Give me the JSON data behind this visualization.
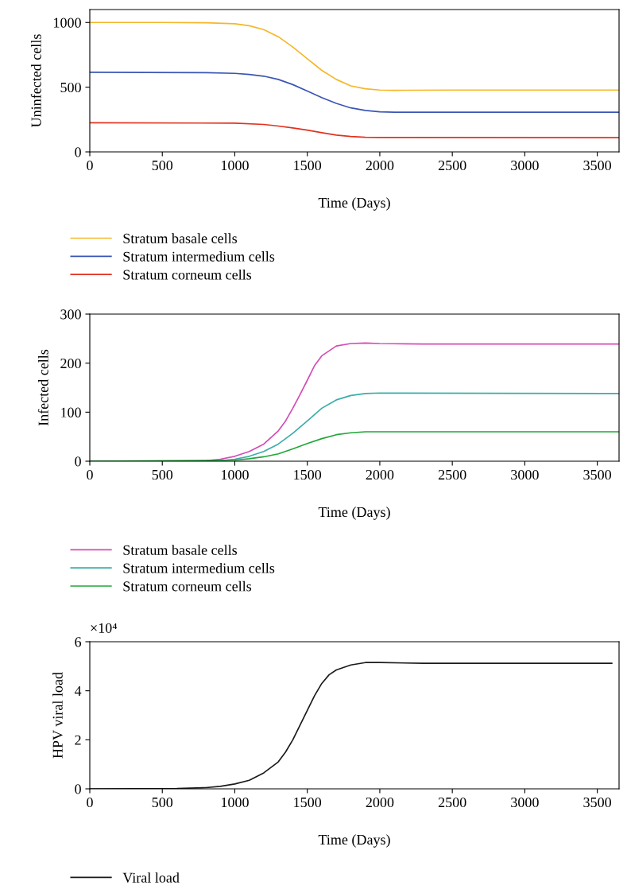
{
  "chart_data": [
    {
      "type": "line",
      "ylabel": "Uninfected cells",
      "xlabel": "Time (Days)",
      "xlim": [
        0,
        3650
      ],
      "xticks": [
        0,
        500,
        1000,
        1500,
        2000,
        2500,
        3000,
        3500
      ],
      "ylim": [
        0,
        1100
      ],
      "yticks": [
        0,
        500,
        1000
      ],
      "legend": "bottom",
      "grid": false,
      "series": [
        {
          "name": "Stratum basale cells",
          "color": "#f5b728",
          "x": [
            0,
            500,
            800,
            1000,
            1100,
            1200,
            1300,
            1400,
            1500,
            1600,
            1700,
            1800,
            1900,
            2000,
            2100,
            2500,
            3650
          ],
          "values": [
            1000,
            1000,
            998,
            990,
            975,
            945,
            890,
            810,
            720,
            630,
            560,
            510,
            488,
            478,
            476,
            478,
            478
          ]
        },
        {
          "name": "Stratum intermedium cells",
          "color": "#3a55b4",
          "x": [
            0,
            800,
            1000,
            1100,
            1200,
            1300,
            1400,
            1500,
            1600,
            1700,
            1800,
            1900,
            2000,
            2100,
            3650
          ],
          "values": [
            615,
            612,
            607,
            598,
            585,
            560,
            520,
            470,
            420,
            375,
            340,
            320,
            310,
            307,
            307
          ]
        },
        {
          "name": "Stratum corneum cells",
          "color": "#e2321e",
          "x": [
            0,
            1000,
            1200,
            1300,
            1400,
            1500,
            1600,
            1700,
            1800,
            1900,
            2000,
            3650
          ],
          "values": [
            225,
            222,
            212,
            200,
            185,
            168,
            148,
            130,
            119,
            113,
            111,
            110
          ]
        }
      ]
    },
    {
      "type": "line",
      "ylabel": "Infected cells",
      "xlabel": "Time (Days)",
      "xlim": [
        0,
        3650
      ],
      "xticks": [
        0,
        500,
        1000,
        1500,
        2000,
        2500,
        3000,
        3500
      ],
      "ylim": [
        0,
        300
      ],
      "yticks": [
        0,
        100,
        200,
        300
      ],
      "legend": "bottom",
      "grid": false,
      "series": [
        {
          "name": "Stratum basale cells",
          "color": "#d44bb5",
          "x": [
            0,
            700,
            800,
            900,
            1000,
            1100,
            1200,
            1300,
            1350,
            1400,
            1450,
            1500,
            1550,
            1600,
            1700,
            1800,
            1900,
            2000,
            2300,
            3650
          ],
          "values": [
            0,
            0,
            1,
            4,
            10,
            20,
            35,
            62,
            82,
            108,
            136,
            165,
            195,
            215,
            235,
            240,
            241,
            240,
            239,
            239
          ]
        },
        {
          "name": "Stratum intermedium cells",
          "color": "#3aada8",
          "x": [
            0,
            800,
            900,
            1000,
            1100,
            1200,
            1300,
            1400,
            1500,
            1600,
            1700,
            1800,
            1900,
            2000,
            3650
          ],
          "values": [
            0,
            0,
            1,
            4,
            10,
            20,
            35,
            57,
            82,
            108,
            125,
            134,
            138,
            139,
            138
          ]
        },
        {
          "name": "Stratum corneum cells",
          "color": "#21a637",
          "x": [
            0,
            1000,
            1100,
            1200,
            1300,
            1400,
            1500,
            1600,
            1700,
            1800,
            1900,
            2000,
            3650
          ],
          "values": [
            0,
            2,
            5,
            9,
            15,
            25,
            36,
            46,
            54,
            58,
            60,
            60,
            60
          ]
        }
      ]
    },
    {
      "type": "line",
      "ylabel": "HPV viral load",
      "xlabel": "Time (Days)",
      "xlim": [
        0,
        3650
      ],
      "xticks": [
        0,
        500,
        1000,
        1500,
        2000,
        2500,
        3000,
        3500
      ],
      "ylim": [
        0,
        6
      ],
      "yticks": [
        0,
        2,
        4,
        6
      ],
      "legend": "bottom",
      "grid": false,
      "annotations": [
        "×10⁴"
      ],
      "series": [
        {
          "name": "Viral load",
          "color": "#1a1a1a",
          "x": [
            0,
            600,
            800,
            900,
            1000,
            1100,
            1200,
            1300,
            1350,
            1400,
            1450,
            1500,
            1550,
            1600,
            1650,
            1700,
            1800,
            1900,
            2000,
            2300,
            3600
          ],
          "values": [
            0,
            0.01,
            0.05,
            0.1,
            0.2,
            0.35,
            0.65,
            1.1,
            1.5,
            2.0,
            2.6,
            3.2,
            3.8,
            4.3,
            4.65,
            4.85,
            5.05,
            5.15,
            5.15,
            5.12,
            5.12
          ]
        }
      ]
    }
  ]
}
